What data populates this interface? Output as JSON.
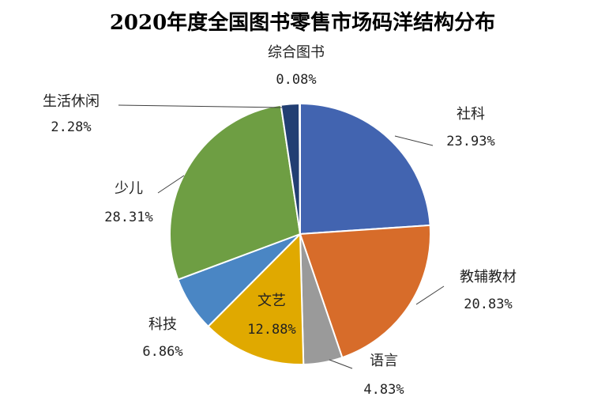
{
  "chart_data": {
    "type": "pie",
    "title": "2020年度全国图书零售市场码洋结构分布",
    "categories": [
      "社科",
      "教辅教材",
      "语言",
      "文艺",
      "科技",
      "少儿",
      "生活休闲",
      "综合图书"
    ],
    "values": [
      23.93,
      20.83,
      4.83,
      12.88,
      6.86,
      28.31,
      2.28,
      0.08
    ],
    "value_labels": [
      "23.93%",
      "20.83%",
      "4.83%",
      "12.88%",
      "6.86%",
      "28.31%",
      "2.28%",
      "0.08%"
    ],
    "colors": [
      "#4264B0",
      "#D76C2A",
      "#9A9A9A",
      "#E0A900",
      "#4A86C4",
      "#6E9E43",
      "#223F73",
      "#96A8D8"
    ],
    "start_angle_deg": 0,
    "direction": "clockwise",
    "legend": "none",
    "data_labels": "outside with leader lines"
  }
}
